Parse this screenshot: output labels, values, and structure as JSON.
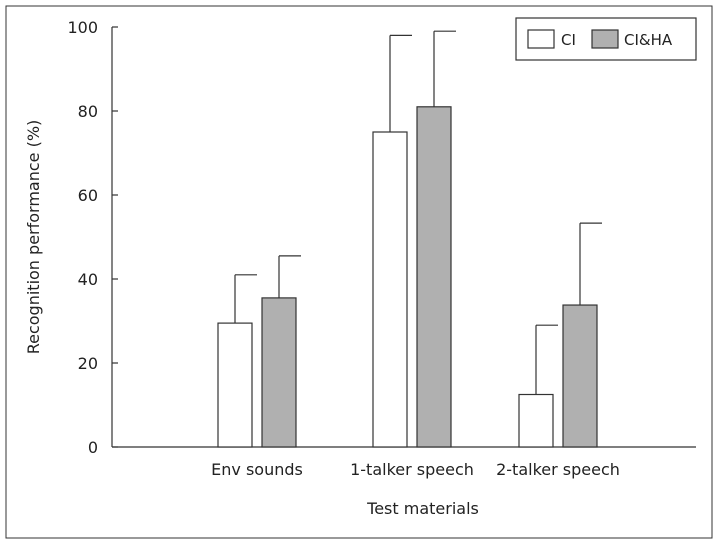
{
  "chart_data": {
    "type": "bar",
    "xlabel": "Test materials",
    "ylabel": "Recognition performance (%)",
    "ylim": [
      0,
      100
    ],
    "yticks": [
      0,
      20,
      40,
      60,
      80,
      100
    ],
    "categories": [
      "Env sounds",
      "1-talker speech",
      "2-talker speech"
    ],
    "series": [
      {
        "name": "CI",
        "values": [
          29.5,
          75,
          12.5
        ],
        "error_upper": [
          11.5,
          23,
          16.5
        ],
        "color": "#ffffff"
      },
      {
        "name": "CI&HA",
        "values": [
          35.5,
          81,
          33.8
        ],
        "error_upper": [
          10,
          18,
          19.5
        ],
        "color": "#b0b0b0"
      }
    ],
    "grid": false,
    "legend": "top-right",
    "error_bars": "upper only"
  }
}
